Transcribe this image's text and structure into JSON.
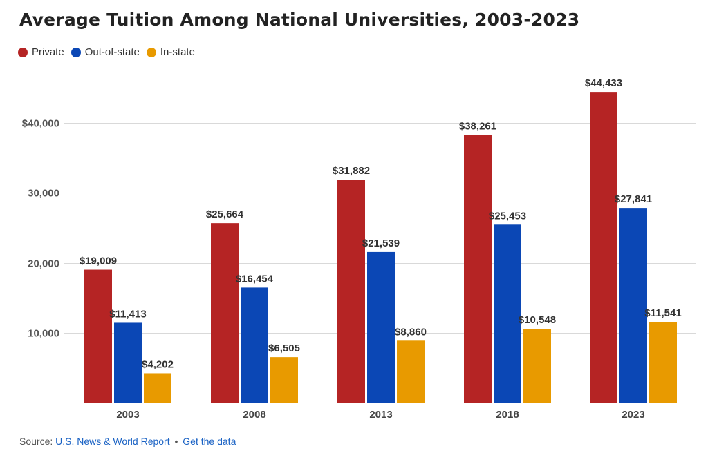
{
  "title": "Average Tuition Among National Universities, 2003-2023",
  "legend": [
    {
      "label": "Private",
      "color": "#b52424"
    },
    {
      "label": "Out-of-state",
      "color": "#0b47b5"
    },
    {
      "label": "In-state",
      "color": "#e89a00"
    }
  ],
  "footer": {
    "source_prefix": "Source:",
    "source_link": "U.S. News & World Report",
    "separator": "•",
    "data_link": "Get the data"
  },
  "chart_data": {
    "type": "bar",
    "title": "Average Tuition Among National Universities, 2003-2023",
    "xlabel": "",
    "ylabel": "",
    "categories": [
      "2003",
      "2008",
      "2013",
      "2018",
      "2023"
    ],
    "ylim": [
      0,
      50000
    ],
    "yticks": [
      10000,
      20000,
      30000,
      40000
    ],
    "ytick_labels": [
      "10,000",
      "20,000",
      "30,000",
      "$40,000"
    ],
    "grid": true,
    "legend_position": "top-left",
    "series": [
      {
        "name": "Private",
        "color": "#b52424",
        "values": [
          19009,
          25664,
          31882,
          38261,
          44433
        ],
        "labels": [
          "$19,009",
          "$25,664",
          "$31,882",
          "$38,261",
          "$44,433"
        ]
      },
      {
        "name": "Out-of-state",
        "color": "#0b47b5",
        "values": [
          11413,
          16454,
          21539,
          25453,
          27841
        ],
        "labels": [
          "$11,413",
          "$16,454",
          "$21,539",
          "$25,453",
          "$27,841"
        ]
      },
      {
        "name": "In-state",
        "color": "#e89a00",
        "values": [
          4202,
          6505,
          8860,
          10548,
          11541
        ],
        "labels": [
          "$4,202",
          "$6,505",
          "$8,860",
          "$10,548",
          "$11,541"
        ]
      }
    ]
  }
}
